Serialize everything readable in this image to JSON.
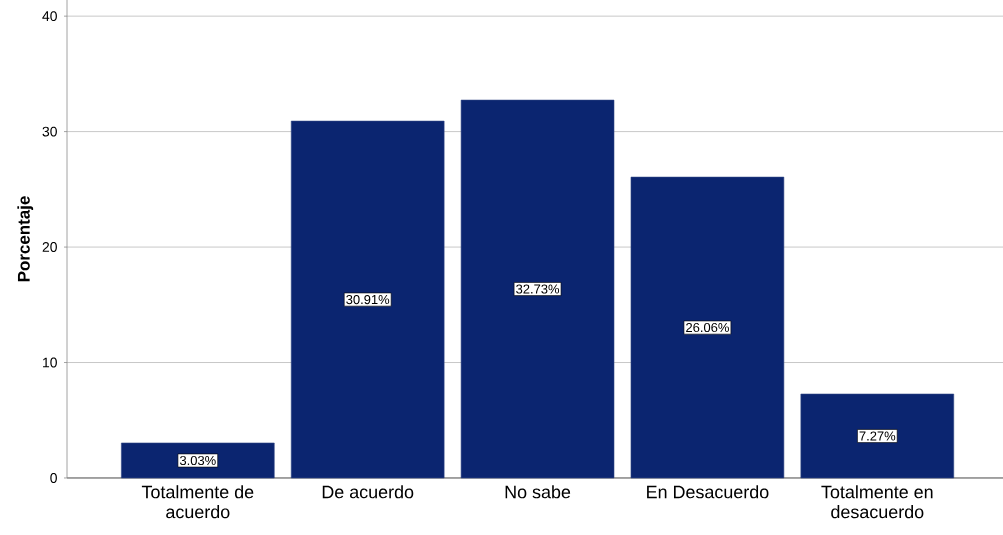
{
  "chart_data": {
    "type": "bar",
    "ylabel": "Porcentaje",
    "categories": [
      "Totalmente de acuerdo",
      "De acuerdo",
      "No sabe",
      "En Desacuerdo",
      "Totalmente en desacuerdo"
    ],
    "values": [
      3.03,
      30.91,
      32.73,
      26.06,
      7.27
    ],
    "value_labels": [
      "3.03%",
      "30.91%",
      "32.73%",
      "26.06%",
      "7.27%"
    ],
    "color": "#0b2570",
    "ylim": [
      0,
      41.4
    ],
    "yticks": [
      0,
      10,
      20,
      30,
      40
    ],
    "grid": "y"
  }
}
